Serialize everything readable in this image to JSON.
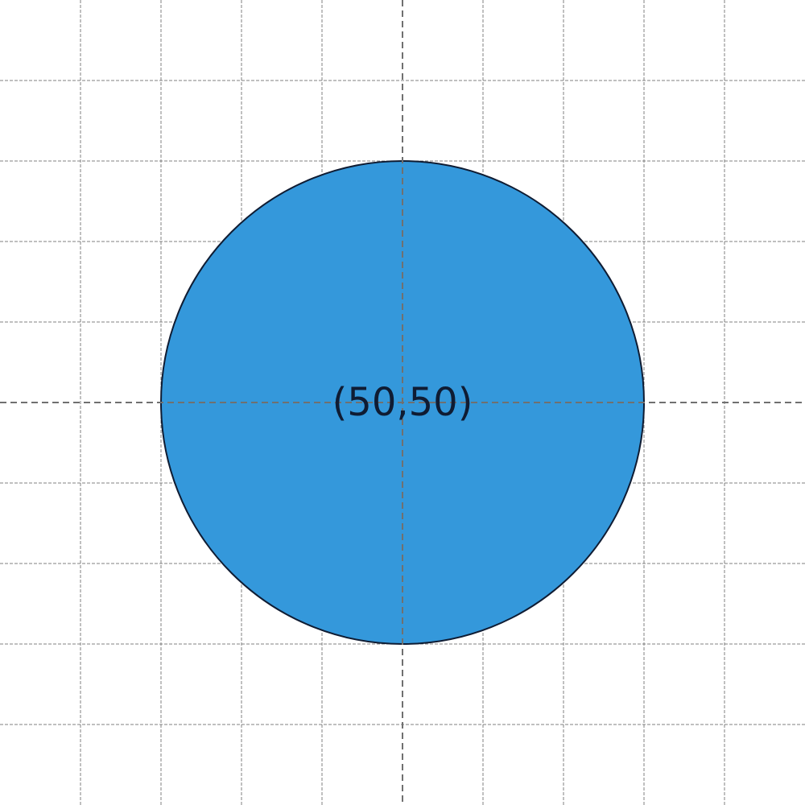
{
  "diagram": {
    "grid": {
      "step": 10,
      "range": [
        0,
        100
      ],
      "major_lines": [
        50
      ]
    },
    "circle": {
      "center": [
        50,
        50
      ],
      "radius": 30,
      "label": "(50,50)",
      "fill": "#3498db",
      "stroke": "#0f1c33"
    },
    "colors": {
      "grid": "#808080",
      "axis": "#707070",
      "label": "#0f1c33"
    }
  }
}
